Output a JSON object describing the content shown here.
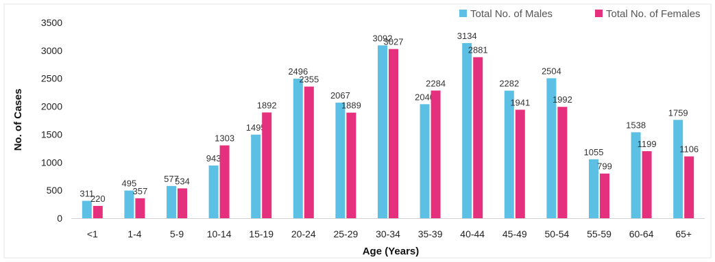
{
  "chart_data": {
    "type": "bar",
    "xlabel": "Age (Years)",
    "ylabel": "No. of Cases",
    "ylim": [
      0,
      3500
    ],
    "yticks": [
      0,
      500,
      1000,
      1500,
      2000,
      2500,
      3000,
      3500
    ],
    "grid": false,
    "legend_position": "top-right",
    "categories": [
      "<1",
      "1-4",
      "5-9",
      "10-14",
      "15-19",
      "20-24",
      "25-29",
      "30-34",
      "35-39",
      "40-44",
      "45-49",
      "50-54",
      "55-59",
      "60-64",
      "65+"
    ],
    "series": [
      {
        "name": "Total No. of Males",
        "color": "#5BC0E4",
        "values": [
          311,
          495,
          577,
          943,
          1495,
          2496,
          2067,
          3092,
          2040,
          3134,
          2282,
          2504,
          1055,
          1538,
          1759
        ]
      },
      {
        "name": "Total No. of Females",
        "color": "#E5317D",
        "values": [
          220,
          357,
          534,
          1303,
          1892,
          2355,
          1889,
          3027,
          2284,
          2881,
          1941,
          1992,
          799,
          1199,
          1106
        ]
      }
    ]
  }
}
